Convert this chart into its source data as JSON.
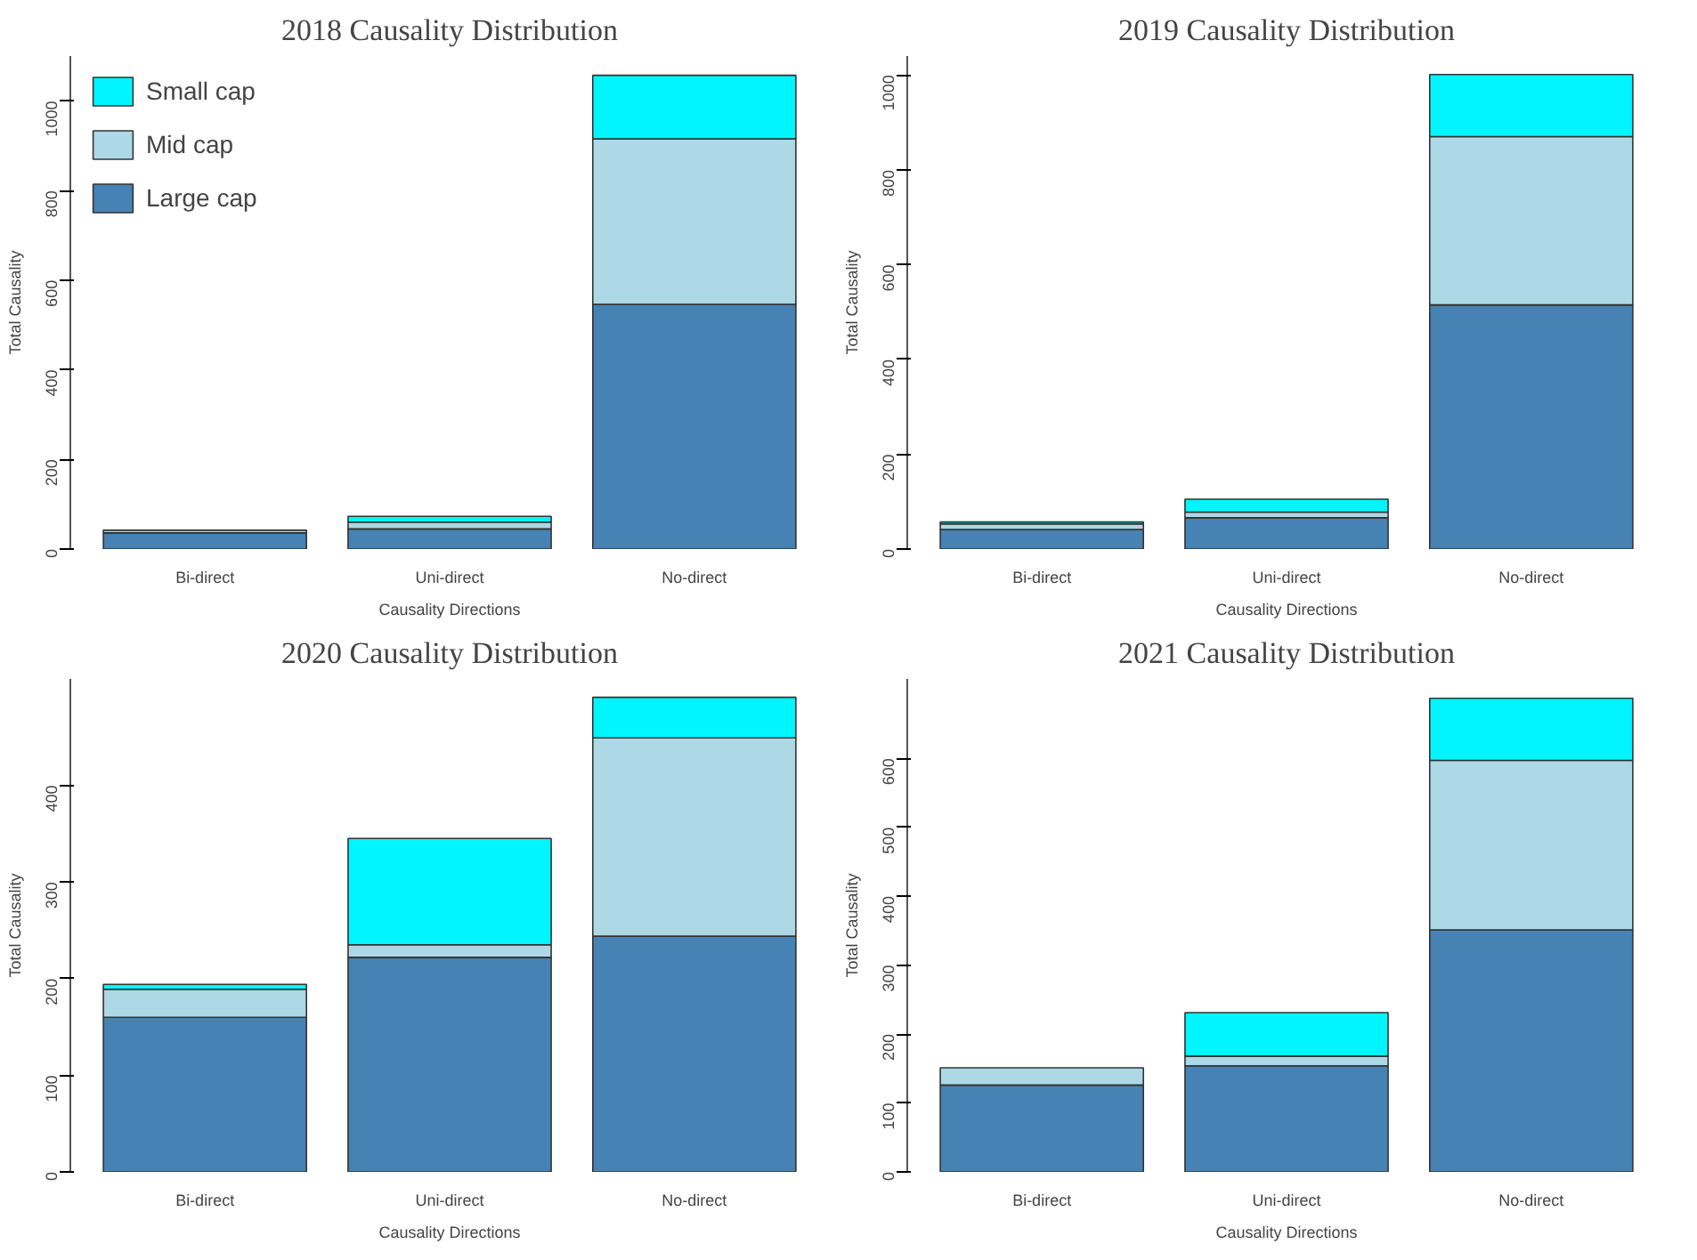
{
  "chart_data": [
    {
      "type": "bar",
      "stacked": true,
      "title": "2018 Causality Distribution",
      "xlabel": "Causality Directions",
      "ylabel": "Total Causality",
      "categories": [
        "Bi-direct",
        "Uni-direct",
        "No-direct"
      ],
      "ylim": [
        0,
        1100
      ],
      "yticks": [
        0,
        200,
        400,
        600,
        800,
        1000
      ],
      "grid": false,
      "legend": "top left",
      "series": [
        {
          "name": "Large cap",
          "color": "#4682b4",
          "values": [
            36,
            45,
            546
          ]
        },
        {
          "name": "Mid cap",
          "color": "#add8e6",
          "values": [
            6,
            15,
            369
          ]
        },
        {
          "name": "Small cap",
          "color": "#00f5ff",
          "values": [
            null,
            13,
            142
          ]
        }
      ]
    },
    {
      "type": "bar",
      "stacked": true,
      "title": "2019 Causality Distribution",
      "xlabel": "Causality Directions",
      "ylabel": "Total Causality",
      "categories": [
        "Bi-direct",
        "Uni-direct",
        "No-direct"
      ],
      "ylim": [
        0,
        1040
      ],
      "yticks": [
        0,
        200,
        400,
        600,
        800,
        1000
      ],
      "grid": false,
      "legend": false,
      "series": [
        {
          "color": "#4682b4",
          "values": [
            41,
            66,
            515
          ]
        },
        {
          "color": "#add8e6",
          "values": [
            12,
            12,
            355
          ]
        },
        {
          "color": "#00f5ff",
          "values": [
            4,
            27,
            131
          ]
        }
      ]
    },
    {
      "type": "bar",
      "stacked": true,
      "title": "2020 Causality Distribution",
      "xlabel": "Causality Directions",
      "ylabel": "Total Causality",
      "categories": [
        "Bi-direct",
        "Uni-direct",
        "No-direct"
      ],
      "ylim": [
        0,
        510
      ],
      "yticks": [
        0,
        100,
        200,
        300,
        400
      ],
      "grid": false,
      "legend": false,
      "series": [
        {
          "color": "#4682b4",
          "values": [
            160,
            222,
            244
          ]
        },
        {
          "color": "#add8e6",
          "values": [
            29,
            13,
            205
          ]
        },
        {
          "color": "#00f5ff",
          "values": [
            5,
            110,
            42
          ]
        }
      ]
    },
    {
      "type": "bar",
      "stacked": true,
      "title": "2021 Causality Distribution",
      "xlabel": "Causality Directions",
      "ylabel": "Total Causality",
      "categories": [
        "Bi-direct",
        "Uni-direct",
        "No-direct"
      ],
      "ylim": [
        0,
        715
      ],
      "yticks": [
        0,
        100,
        200,
        300,
        400,
        500,
        600
      ],
      "grid": false,
      "legend": false,
      "series": [
        {
          "color": "#4682b4",
          "values": [
            126,
            154,
            351
          ]
        },
        {
          "color": "#add8e6",
          "values": [
            25,
            14,
            246
          ]
        },
        {
          "color": "#00f5ff",
          "values": [
            null,
            63,
            90
          ]
        }
      ]
    }
  ]
}
